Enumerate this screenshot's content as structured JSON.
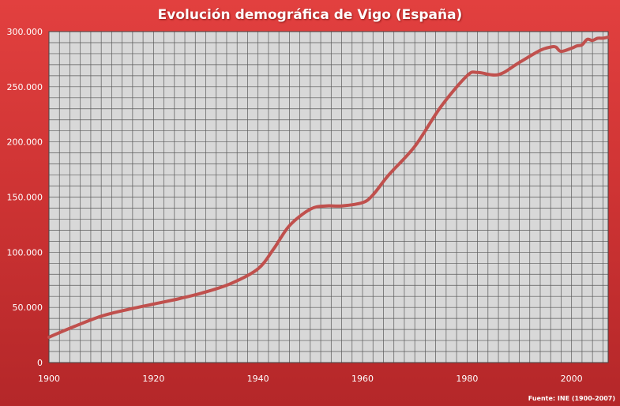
{
  "title": "Evolución demográfica de Vigo (España)",
  "source": "Fuente: INE (1900-2007)",
  "colors": {
    "line": "#c0504d",
    "plot_bg": "#d8d8d8",
    "grid": "#5a5a5a",
    "frame": "#d63a3a"
  },
  "chart_data": {
    "type": "line",
    "title": "Evolución demográfica de Vigo (España)",
    "xlabel": "",
    "ylabel": "",
    "xlim": [
      1900,
      2007
    ],
    "ylim": [
      0,
      300000
    ],
    "grid": true,
    "x_ticks": [
      1900,
      1920,
      1940,
      1960,
      1980,
      2000
    ],
    "x_tick_labels": [
      "1900",
      "1920",
      "1940",
      "1960",
      "1980",
      "2000"
    ],
    "y_ticks": [
      0,
      50000,
      100000,
      150000,
      200000,
      250000,
      300000
    ],
    "y_tick_labels": [
      "0",
      "50.000",
      "100.000",
      "150.000",
      "200.000",
      "250.000",
      "300.000"
    ],
    "series": [
      {
        "x": [
          1900,
          1905,
          1910,
          1915,
          1920,
          1925,
          1930,
          1935,
          1940,
          1943,
          1946,
          1950,
          1953,
          1956,
          1960,
          1962,
          1965,
          1970,
          1975,
          1980,
          1982,
          1986,
          1990,
          1994,
          1996,
          1997,
          1998,
          2000,
          2001,
          2002,
          2003,
          2004,
          2005,
          2006,
          2007
        ],
        "y": [
          23000,
          33000,
          42000,
          48000,
          53000,
          58000,
          64000,
          72000,
          85000,
          103000,
          124000,
          139000,
          142000,
          142000,
          145000,
          152000,
          170000,
          196000,
          232000,
          260000,
          263000,
          261000,
          272000,
          283000,
          286000,
          286000,
          282000,
          285000,
          287000,
          288000,
          293000,
          292000,
          294000,
          294000,
          295000
        ]
      }
    ]
  }
}
